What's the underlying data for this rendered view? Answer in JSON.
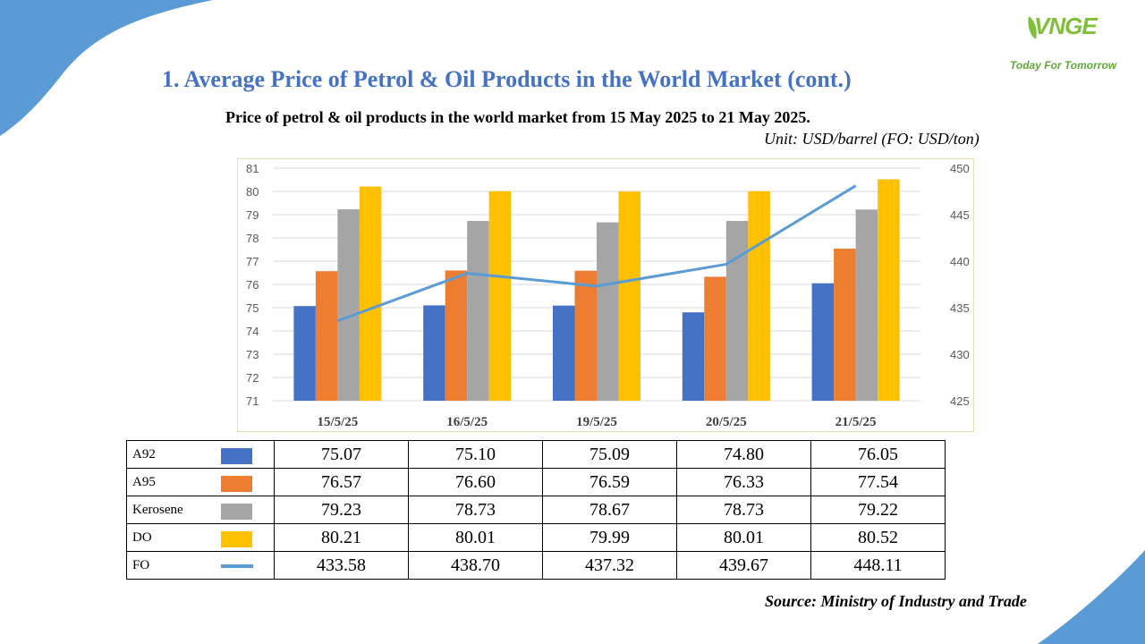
{
  "page": {
    "title": "1. Average Price of Petrol & Oil Products in the World Market (cont.)",
    "source": "Source: Ministry of Industry and Trade"
  },
  "logo": {
    "mark": "VNGE",
    "tagline": "Today For Tomorrow"
  },
  "chart_data": {
    "type": "bar",
    "title": "Price of petrol & oil products in the world market from 15 May 2025 to 21 May 2025.",
    "subtitle": "Unit: USD/barrel (FO: USD/ton)",
    "categories": [
      "15/5/25",
      "16/5/25",
      "19/5/25",
      "20/5/25",
      "21/5/25"
    ],
    "series": [
      {
        "name": "A92",
        "type": "bar",
        "axis": "left",
        "color": "#4472c4",
        "values": [
          75.07,
          75.1,
          75.09,
          74.8,
          76.05
        ]
      },
      {
        "name": "A95",
        "type": "bar",
        "axis": "left",
        "color": "#ed7d31",
        "values": [
          76.57,
          76.6,
          76.59,
          76.33,
          77.54
        ]
      },
      {
        "name": "Kerosene",
        "type": "bar",
        "axis": "left",
        "color": "#a5a5a5",
        "values": [
          79.23,
          78.73,
          78.67,
          78.73,
          79.22
        ]
      },
      {
        "name": "DO",
        "type": "bar",
        "axis": "left",
        "color": "#ffc000",
        "values": [
          80.21,
          80.01,
          79.99,
          80.01,
          80.52
        ]
      },
      {
        "name": "FO",
        "type": "line",
        "axis": "right",
        "color": "#5b9bd5",
        "values": [
          433.58,
          438.7,
          437.32,
          439.67,
          448.11
        ]
      }
    ],
    "ylim": [
      71,
      81
    ],
    "yticks": [
      "71",
      "72",
      "73",
      "74",
      "75",
      "76",
      "77",
      "78",
      "79",
      "80",
      "81"
    ],
    "y2lim": [
      425,
      450
    ],
    "y2ticks": [
      "425",
      "430",
      "435",
      "440",
      "445",
      "450"
    ],
    "grid": true,
    "legend": "data table below chart",
    "table": {
      "rows": [
        {
          "label": "A92",
          "values": [
            "75.07",
            "75.10",
            "75.09",
            "74.80",
            "76.05"
          ]
        },
        {
          "label": "A95",
          "values": [
            "76.57",
            "76.60",
            "76.59",
            "76.33",
            "77.54"
          ]
        },
        {
          "label": "Kerosene",
          "values": [
            "79.23",
            "78.73",
            "78.67",
            "78.73",
            "79.22"
          ]
        },
        {
          "label": "DO",
          "values": [
            "80.21",
            "80.01",
            "79.99",
            "80.01",
            "80.52"
          ]
        },
        {
          "label": "FO",
          "values": [
            "433.58",
            "438.70",
            "437.32",
            "439.67",
            "448.11"
          ]
        }
      ]
    }
  }
}
